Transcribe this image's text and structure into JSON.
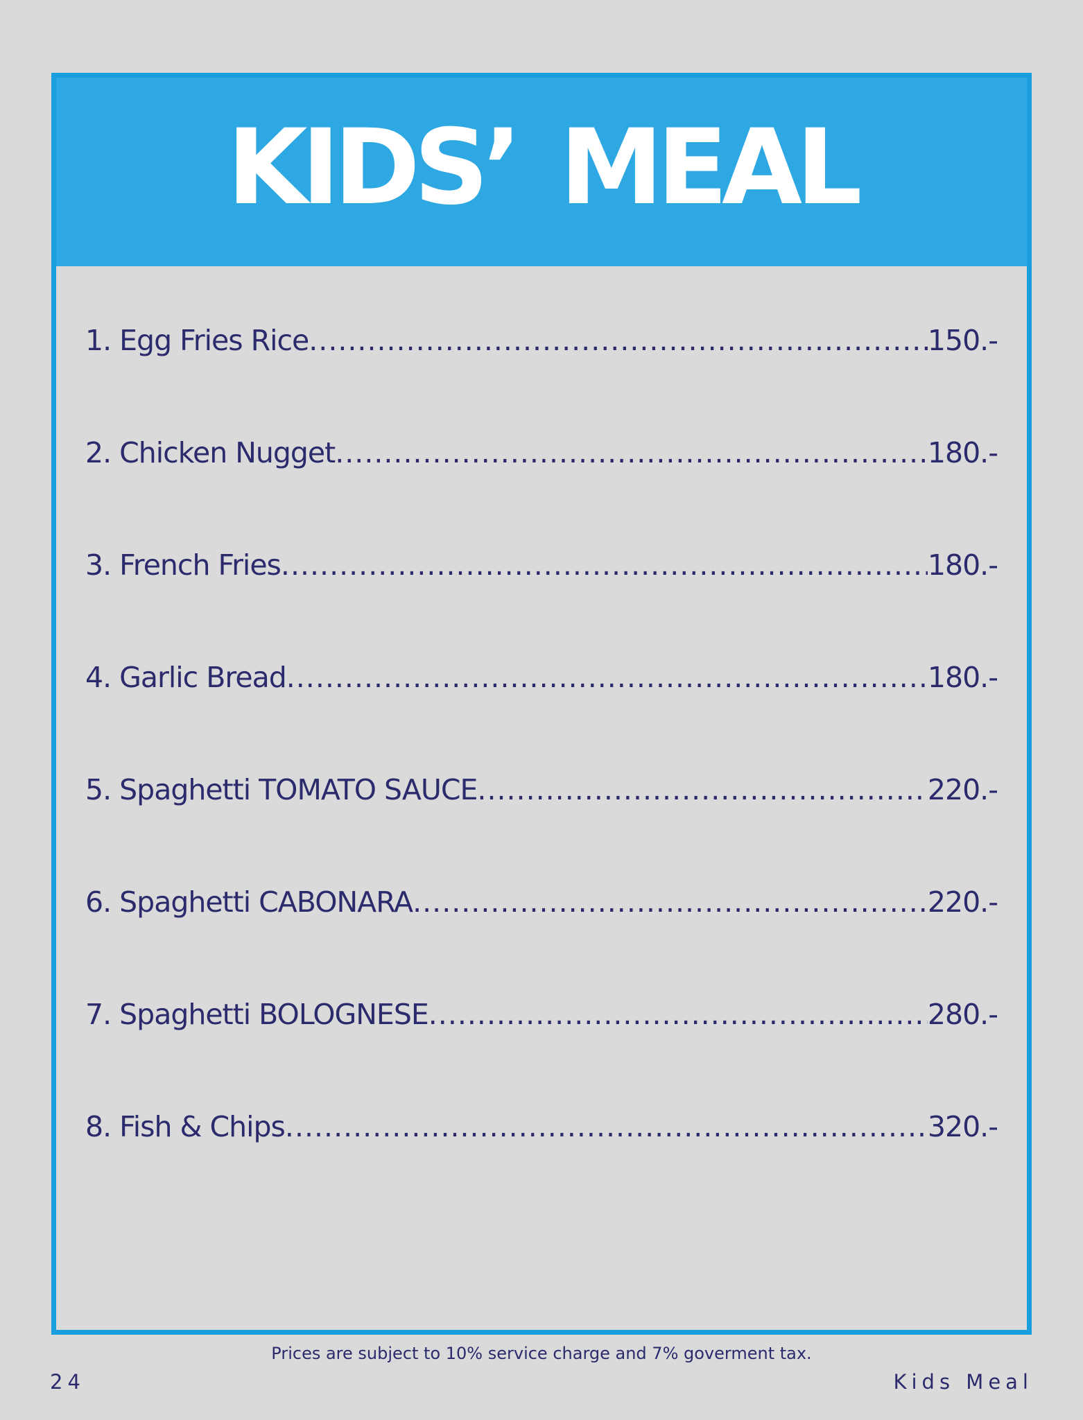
{
  "header": {
    "title": "KIDS’ MEAL"
  },
  "menu": {
    "items": [
      {
        "name": "1. Egg Fries Rice",
        "price": "150.-"
      },
      {
        "name": "2. Chicken Nugget",
        "price": "180.-"
      },
      {
        "name": "3. French Fries",
        "price": "180.-"
      },
      {
        "name": "4. Garlic Bread",
        "price": "180.-"
      },
      {
        "name": "5. Spaghetti TOMATO SAUCE",
        "price": "220.-"
      },
      {
        "name": "6. Spaghetti CABONARA",
        "price": "220.-"
      },
      {
        "name": "7. Spaghetti BOLOGNESE",
        "price": "280.-"
      },
      {
        "name": "8. Fish & Chips",
        "price": "320.-"
      }
    ]
  },
  "footer": {
    "note": "Prices are subject to 10% service charge and 7% goverment tax.",
    "page_number": "24",
    "section": "Kids Meal"
  },
  "colors": {
    "background": "#dadada",
    "banner": "#2ea8e2",
    "border": "#1b9ee0",
    "text": "#2a2a6c"
  }
}
